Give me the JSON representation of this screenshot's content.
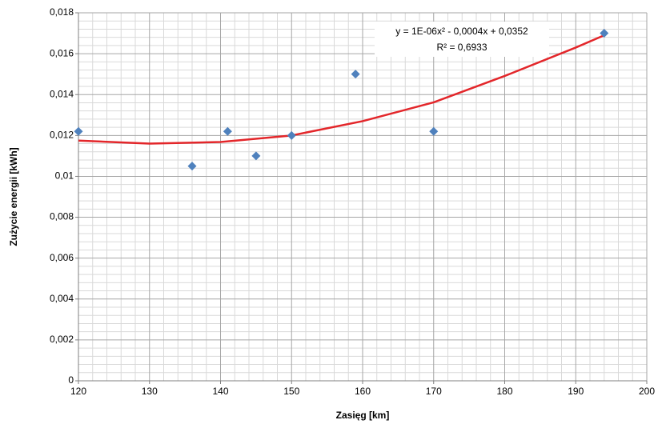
{
  "chart_data": {
    "type": "scatter",
    "x_label": "Zasięg [km]",
    "y_label": "Zużycie energii [kWh]",
    "series": [
      {
        "color": "#4f81bd",
        "x": [
          120,
          136,
          141,
          145,
          150,
          159,
          170,
          194
        ],
        "values": [
          0.0122,
          0.0105,
          0.0122,
          0.011,
          0.012,
          0.015,
          0.0122,
          0.017
        ]
      }
    ],
    "trendline": {
      "color": "#e3262a",
      "x": [
        120,
        130,
        140,
        150,
        160,
        170,
        180,
        190,
        194
      ],
      "values": [
        0.01175,
        0.0116,
        0.01168,
        0.012,
        0.0127,
        0.01362,
        0.01491,
        0.0163,
        0.0169
      ],
      "equation": "y = 1E-06x² - 0,0004x + 0,0352",
      "r_squared": "R² = 0,6933"
    },
    "xlim": [
      120,
      200
    ],
    "xticks": [
      120,
      130,
      140,
      150,
      160,
      170,
      180,
      190,
      200
    ],
    "ylim": [
      0,
      0.018
    ],
    "yticks": [
      0,
      {
        "value": 0.002,
        "label": "0,002"
      },
      {
        "value": 0.004,
        "label": "0,004"
      },
      {
        "value": 0.006,
        "label": "0,006"
      },
      {
        "value": 0.008,
        "label": "0,008"
      },
      {
        "value": 0.01,
        "label": "0,01"
      },
      {
        "value": 0.012,
        "label": "0,012"
      },
      {
        "value": 0.014,
        "label": "0,014"
      },
      {
        "value": 0.016,
        "label": "0,016"
      },
      {
        "value": 0.018,
        "label": "0,018"
      }
    ],
    "grid": true,
    "minor_grid": true
  }
}
